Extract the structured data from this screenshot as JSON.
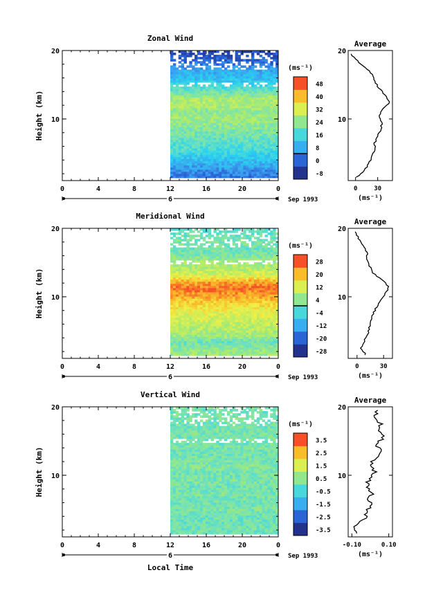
{
  "chart_data": [
    {
      "type": "heatmap",
      "title": "Zonal Wind",
      "ylabel": "Height (km)",
      "unit_label": "(ms⁻¹)",
      "date_label": "Sep 1993",
      "day_label": "6",
      "xlim": [
        0,
        24
      ],
      "ylim": [
        1,
        20
      ],
      "x_ticks": [
        "0",
        "4",
        "8",
        "12",
        "16",
        "20",
        "0"
      ],
      "y_ticks": [
        "10",
        "20"
      ],
      "data_start_hour": 12,
      "colorbar": {
        "levels": [
          -8,
          0,
          8,
          16,
          24,
          32,
          40,
          48
        ],
        "labels": [
          "-8",
          "0",
          "8",
          "16",
          "24",
          "32",
          "40",
          "48"
        ],
        "zero_line_between": [
          0,
          8
        ]
      },
      "field_profile_by_height": [
        {
          "h": 1,
          "v": 2
        },
        {
          "h": 2,
          "v": 4
        },
        {
          "h": 3,
          "v": 8
        },
        {
          "h": 4,
          "v": 12
        },
        {
          "h": 5,
          "v": 16
        },
        {
          "h": 6,
          "v": 18
        },
        {
          "h": 7,
          "v": 20
        },
        {
          "h": 8,
          "v": 22
        },
        {
          "h": 9,
          "v": 24
        },
        {
          "h": 10,
          "v": 26
        },
        {
          "h": 11,
          "v": 24
        },
        {
          "h": 12,
          "v": 28
        },
        {
          "h": 13,
          "v": 26
        },
        {
          "h": 14,
          "v": 20
        },
        {
          "h": 15,
          "v": 14
        },
        {
          "h": 16,
          "v": 10
        },
        {
          "h": 17,
          "v": 8
        },
        {
          "h": 18,
          "v": 2
        },
        {
          "h": 19,
          "v": -2
        },
        {
          "h": 20,
          "v": -4
        }
      ],
      "average": {
        "title": "Average",
        "xlim": [
          -10,
          50
        ],
        "x_ticks": [
          "0",
          "30"
        ],
        "xlabel": "(ms⁻¹)",
        "y_ticks": [
          "10",
          "20"
        ],
        "profile": [
          {
            "h": 1.5,
            "v": 2
          },
          {
            "h": 2.5,
            "v": 12
          },
          {
            "h": 3.5,
            "v": 18
          },
          {
            "h": 4.5,
            "v": 22
          },
          {
            "h": 5.5,
            "v": 26
          },
          {
            "h": 6.5,
            "v": 26
          },
          {
            "h": 7.5,
            "v": 30
          },
          {
            "h": 8.5,
            "v": 34
          },
          {
            "h": 9.5,
            "v": 36
          },
          {
            "h": 10.5,
            "v": 32
          },
          {
            "h": 11.5,
            "v": 38
          },
          {
            "h": 12.5,
            "v": 46
          },
          {
            "h": 13.5,
            "v": 40
          },
          {
            "h": 14.5,
            "v": 32
          },
          {
            "h": 15.5,
            "v": 26
          },
          {
            "h": 16.5,
            "v": 22
          },
          {
            "h": 17.5,
            "v": 14
          },
          {
            "h": 18.5,
            "v": 2
          },
          {
            "h": 19.5,
            "v": -6
          }
        ]
      }
    },
    {
      "type": "heatmap",
      "title": "Meridional Wind",
      "ylabel": "Height (km)",
      "unit_label": "(ms⁻¹)",
      "date_label": "Sep 1993",
      "day_label": "6",
      "xlim": [
        0,
        24
      ],
      "ylim": [
        1,
        20
      ],
      "x_ticks": [
        "0",
        "4",
        "8",
        "12",
        "16",
        "20",
        "0"
      ],
      "y_ticks": [
        "10",
        "20"
      ],
      "data_start_hour": 12,
      "colorbar": {
        "levels": [
          -28,
          -20,
          -12,
          -4,
          4,
          12,
          20,
          28
        ],
        "labels": [
          "-28",
          "-20",
          "-12",
          "-4",
          "4",
          "12",
          "20",
          "28"
        ],
        "zero_line_between": [
          -4,
          4
        ]
      },
      "field_profile_by_height": [
        {
          "h": 1,
          "v": 6
        },
        {
          "h": 2,
          "v": 4
        },
        {
          "h": 3,
          "v": 0
        },
        {
          "h": 4,
          "v": 6
        },
        {
          "h": 5,
          "v": 8
        },
        {
          "h": 6,
          "v": 10
        },
        {
          "h": 7,
          "v": 12
        },
        {
          "h": 8,
          "v": 14
        },
        {
          "h": 9,
          "v": 18
        },
        {
          "h": 10,
          "v": 22
        },
        {
          "h": 11,
          "v": 26
        },
        {
          "h": 12,
          "v": 22
        },
        {
          "h": 13,
          "v": 12
        },
        {
          "h": 14,
          "v": 8
        },
        {
          "h": 15,
          "v": 6
        },
        {
          "h": 16,
          "v": 2
        },
        {
          "h": 17,
          "v": 0
        },
        {
          "h": 18,
          "v": 2
        },
        {
          "h": 19,
          "v": 0
        },
        {
          "h": 20,
          "v": -2
        }
      ],
      "average": {
        "title": "Average",
        "xlim": [
          -10,
          40
        ],
        "x_ticks": [
          "0",
          "30"
        ],
        "xlabel": "(ms⁻¹)",
        "y_ticks": [
          "10",
          "20"
        ],
        "profile": [
          {
            "h": 1.5,
            "v": 10
          },
          {
            "h": 2.5,
            "v": 4
          },
          {
            "h": 3.5,
            "v": 8
          },
          {
            "h": 4.5,
            "v": 12
          },
          {
            "h": 5.5,
            "v": 14
          },
          {
            "h": 6.5,
            "v": 16
          },
          {
            "h": 7.5,
            "v": 18
          },
          {
            "h": 8.5,
            "v": 22
          },
          {
            "h": 9.5,
            "v": 26
          },
          {
            "h": 10.5,
            "v": 32
          },
          {
            "h": 11.5,
            "v": 36
          },
          {
            "h": 12.5,
            "v": 28
          },
          {
            "h": 13.5,
            "v": 18
          },
          {
            "h": 14.5,
            "v": 14
          },
          {
            "h": 15.5,
            "v": 10
          },
          {
            "h": 16.5,
            "v": 12
          },
          {
            "h": 17.5,
            "v": 6
          },
          {
            "h": 18.5,
            "v": 2
          },
          {
            "h": 19.5,
            "v": -2
          }
        ]
      }
    },
    {
      "type": "heatmap",
      "title": "Vertical Wind",
      "ylabel": "Height (km)",
      "xlabel": "Local Time",
      "unit_label": "(ms⁻¹)",
      "date_label": "Sep 1993",
      "day_label": "6",
      "xlim": [
        0,
        24
      ],
      "ylim": [
        1,
        20
      ],
      "x_ticks": [
        "0",
        "4",
        "8",
        "12",
        "16",
        "20",
        "0"
      ],
      "y_ticks": [
        "10",
        "20"
      ],
      "data_start_hour": 12,
      "colorbar": {
        "levels": [
          -3.5,
          -2.5,
          -1.5,
          -0.5,
          0.5,
          1.5,
          2.5,
          3.5
        ],
        "labels": [
          "-3.5",
          "-2.5",
          "-1.5",
          "-0.5",
          "0.5",
          "1.5",
          "2.5",
          "3.5"
        ]
      },
      "field_profile_by_height": [
        {
          "h": 1,
          "v": 0.0
        },
        {
          "h": 2,
          "v": 0.1
        },
        {
          "h": 3,
          "v": 0.0
        },
        {
          "h": 4,
          "v": 0.1
        },
        {
          "h": 5,
          "v": 0.2
        },
        {
          "h": 6,
          "v": 0.1
        },
        {
          "h": 7,
          "v": 0.2
        },
        {
          "h": 8,
          "v": 0.1
        },
        {
          "h": 9,
          "v": 0.2
        },
        {
          "h": 10,
          "v": 0.1
        },
        {
          "h": 11,
          "v": 0.3
        },
        {
          "h": 12,
          "v": 0.2
        },
        {
          "h": 13,
          "v": 0.1
        },
        {
          "h": 14,
          "v": 0.2
        },
        {
          "h": 15,
          "v": 0.1
        },
        {
          "h": 16,
          "v": 0.2
        },
        {
          "h": 17,
          "v": 0.1
        },
        {
          "h": 18,
          "v": 0.2
        },
        {
          "h": 19,
          "v": 0.1
        },
        {
          "h": 20,
          "v": 0.2
        }
      ],
      "average": {
        "title": "Average",
        "xlim": [
          -0.12,
          0.12
        ],
        "x_ticks": [
          "-0.10",
          "0.10"
        ],
        "xlabel": "(ms⁻¹)",
        "y_ticks": [
          "10",
          "20"
        ],
        "profile": [
          {
            "h": 1.5,
            "v": -0.06
          },
          {
            "h": 2.5,
            "v": -0.09
          },
          {
            "h": 3.5,
            "v": -0.04
          },
          {
            "h": 4.5,
            "v": -0.02
          },
          {
            "h": 5.5,
            "v": 0.0
          },
          {
            "h": 6.5,
            "v": -0.01
          },
          {
            "h": 7.5,
            "v": 0.01
          },
          {
            "h": 8.5,
            "v": -0.02
          },
          {
            "h": 9.5,
            "v": 0.0
          },
          {
            "h": 10.5,
            "v": 0.02
          },
          {
            "h": 11.5,
            "v": 0.0
          },
          {
            "h": 12.5,
            "v": 0.03
          },
          {
            "h": 13.5,
            "v": 0.05
          },
          {
            "h": 14.5,
            "v": 0.04
          },
          {
            "h": 15.5,
            "v": 0.07
          },
          {
            "h": 16.5,
            "v": 0.04
          },
          {
            "h": 17.5,
            "v": 0.06
          },
          {
            "h": 18.5,
            "v": 0.03
          },
          {
            "h": 19.5,
            "v": 0.04
          }
        ]
      }
    }
  ]
}
